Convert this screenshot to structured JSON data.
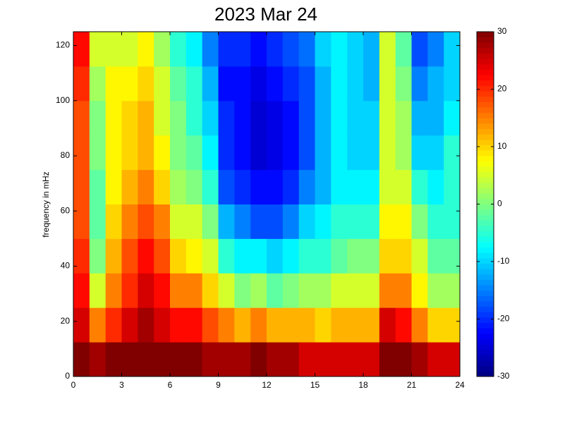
{
  "chart_data": {
    "type": "heatmap",
    "title": "2023 Mar 24",
    "y_label": "frequency in mHz",
    "xlim": [
      0,
      24
    ],
    "xticks": [
      0,
      3,
      6,
      9,
      12,
      15,
      18,
      21,
      24
    ],
    "ylim": [
      0,
      125
    ],
    "yticks": [
      0,
      20,
      40,
      60,
      80,
      100,
      120
    ],
    "xbins": [
      0,
      1,
      2,
      3,
      4,
      5,
      6,
      7,
      8,
      9,
      10,
      11,
      12,
      13,
      14,
      15,
      16,
      17,
      18,
      19,
      20,
      21,
      22,
      23,
      24
    ],
    "ybins": [
      0,
      12.5,
      25,
      37.5,
      50,
      62.5,
      75,
      87.5,
      100,
      112.5,
      125
    ],
    "colormap": "jet",
    "clim": [
      -30,
      30
    ],
    "cticks": [
      -30,
      -20,
      -10,
      0,
      10,
      20,
      30
    ],
    "values": [
      [
        30,
        25,
        22,
        20,
        18,
        18,
        18,
        18,
        20,
        22
      ],
      [
        28,
        15,
        5,
        0,
        -2,
        -2,
        0,
        0,
        2,
        5
      ],
      [
        30,
        20,
        15,
        12,
        10,
        8,
        8,
        8,
        8,
        5
      ],
      [
        30,
        25,
        20,
        18,
        15,
        12,
        10,
        10,
        8,
        5
      ],
      [
        30,
        28,
        25,
        22,
        18,
        15,
        12,
        12,
        10,
        8
      ],
      [
        30,
        25,
        22,
        18,
        15,
        10,
        8,
        5,
        5,
        2
      ],
      [
        30,
        22,
        15,
        10,
        5,
        2,
        0,
        0,
        -2,
        -5
      ],
      [
        30,
        22,
        15,
        8,
        5,
        0,
        -2,
        -5,
        -5,
        -8
      ],
      [
        28,
        18,
        10,
        5,
        0,
        -5,
        -8,
        -10,
        -12,
        -15
      ],
      [
        28,
        15,
        5,
        -5,
        -12,
        -18,
        -20,
        -20,
        -22,
        -20
      ],
      [
        28,
        12,
        0,
        -8,
        -15,
        -20,
        -22,
        -22,
        -22,
        -20
      ],
      [
        30,
        15,
        2,
        -8,
        -18,
        -22,
        -25,
        -25,
        -24,
        -22
      ],
      [
        28,
        12,
        -2,
        -10,
        -18,
        -22,
        -24,
        -24,
        -22,
        -20
      ],
      [
        28,
        12,
        0,
        -8,
        -15,
        -20,
        -22,
        -22,
        -20,
        -18
      ],
      [
        25,
        12,
        2,
        -5,
        -10,
        -15,
        -18,
        -18,
        -18,
        -16
      ],
      [
        25,
        10,
        2,
        -5,
        -8,
        -12,
        -12,
        -12,
        -12,
        -10
      ],
      [
        25,
        12,
        5,
        -2,
        -5,
        -8,
        -8,
        -8,
        -8,
        -8
      ],
      [
        25,
        12,
        5,
        0,
        -5,
        -8,
        -10,
        -10,
        -10,
        -10
      ],
      [
        25,
        12,
        5,
        0,
        -5,
        -8,
        -10,
        -10,
        -12,
        -12
      ],
      [
        30,
        25,
        15,
        10,
        8,
        5,
        5,
        5,
        5,
        5
      ],
      [
        30,
        22,
        15,
        10,
        8,
        5,
        2,
        2,
        0,
        -2
      ],
      [
        28,
        15,
        8,
        5,
        0,
        -5,
        -10,
        -12,
        -15,
        -18
      ],
      [
        25,
        10,
        2,
        -2,
        -5,
        -8,
        -10,
        -12,
        -12,
        -15
      ],
      [
        25,
        10,
        2,
        -2,
        -5,
        -5,
        -5,
        -8,
        -10,
        -10
      ]
    ]
  }
}
